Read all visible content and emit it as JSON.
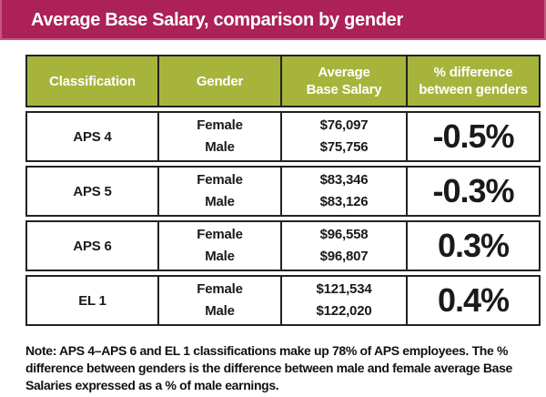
{
  "title": "Average Base Salary, comparison by gender",
  "colors": {
    "banner": "#AC2157",
    "header_green": "#A6B43C",
    "border": "#222222",
    "text": "#1A1A1A"
  },
  "table": {
    "headers": {
      "classification": "Classification",
      "gender": "Gender",
      "avg_salary": "Average\nBase Salary",
      "difference": "% difference\nbetween genders"
    },
    "rows": [
      {
        "classification": "APS 4",
        "genders": "Female\nMale",
        "salaries": "$76,097\n$75,756",
        "difference": "-0.5%"
      },
      {
        "classification": "APS 5",
        "genders": "Female\nMale",
        "salaries": "$83,346\n$83,126",
        "difference": "-0.3%"
      },
      {
        "classification": "APS 6",
        "genders": "Female\nMale",
        "salaries": "$96,558\n$96,807",
        "difference": "0.3%"
      },
      {
        "classification": "EL 1",
        "genders": "Female\nMale",
        "salaries": "$121,534\n$122,020",
        "difference": "0.4%"
      }
    ]
  },
  "note": "Note: APS 4–APS 6 and EL 1 classifications make up 78% of APS employees. The % difference between genders is the difference between male and female average Base Salaries expressed as a % of male earnings.",
  "chart_data": {
    "type": "table",
    "title": "Average Base Salary, comparison by gender",
    "columns": [
      "Classification",
      "Gender",
      "Average Base Salary",
      "% difference between genders"
    ],
    "rows": [
      {
        "classification": "APS 4",
        "female_salary": 76097,
        "male_salary": 75756,
        "pct_difference": -0.5
      },
      {
        "classification": "APS 5",
        "female_salary": 83346,
        "male_salary": 83126,
        "pct_difference": -0.3
      },
      {
        "classification": "APS 6",
        "female_salary": 96558,
        "male_salary": 96807,
        "pct_difference": 0.3
      },
      {
        "classification": "EL 1",
        "female_salary": 121534,
        "male_salary": 122020,
        "pct_difference": 0.4
      }
    ],
    "note": "APS 4-APS 6 and EL 1 classifications make up 78% of APS employees."
  }
}
